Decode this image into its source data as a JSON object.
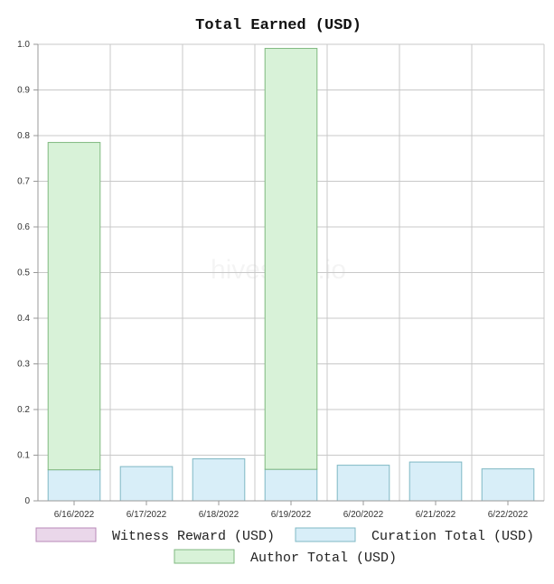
{
  "chart_data": {
    "type": "bar",
    "stacked": true,
    "title": "Total Earned (USD)",
    "watermark": "hivestats.io",
    "categories": [
      "6/16/2022",
      "6/17/2022",
      "6/18/2022",
      "6/19/2022",
      "6/20/2022",
      "6/21/2022",
      "6/22/2022"
    ],
    "ylim": [
      0,
      1.0
    ],
    "yticks": [
      0,
      0.1,
      0.2,
      0.3,
      0.4,
      0.5,
      0.6,
      0.7,
      0.8,
      0.9,
      1.0
    ],
    "ytick_labels": [
      "0",
      "0.1",
      "0.2",
      "0.3",
      "0.4",
      "0.5",
      "0.6",
      "0.7",
      "0.8",
      "0.9",
      "1.0"
    ],
    "grid": true,
    "legend_position": "bottom",
    "series": [
      {
        "name": "Witness Reward (USD)",
        "values": [
          0,
          0,
          0,
          0,
          0,
          0,
          0
        ],
        "fill": "#ead7ea",
        "stroke": "#b888b8"
      },
      {
        "name": "Curation Total (USD)",
        "values": [
          0.068,
          0.075,
          0.092,
          0.069,
          0.078,
          0.085,
          0.07
        ],
        "fill": "#d8eef8",
        "stroke": "#7fb8c4"
      },
      {
        "name": "Author Total (USD)",
        "values": [
          0.717,
          0,
          0,
          0.922,
          0,
          0,
          0
        ],
        "fill": "#d8f2d8",
        "stroke": "#7fb87f"
      }
    ]
  }
}
